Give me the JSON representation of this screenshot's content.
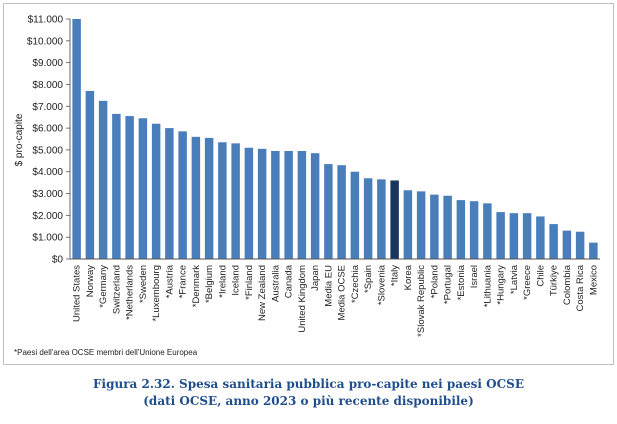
{
  "chart_data": {
    "type": "bar",
    "title": "",
    "xlabel": "",
    "ylabel": "$ pro-capite",
    "ylim": [
      0,
      11000
    ],
    "yticks": [
      0,
      1000,
      2000,
      3000,
      4000,
      5000,
      6000,
      7000,
      8000,
      9000,
      10000,
      11000
    ],
    "ytick_labels": [
      "$0",
      "$1.000",
      "$2.000",
      "$3.000",
      "$4.000",
      "$5.000",
      "$6.000",
      "$7.000",
      "$8.000",
      "$9.000",
      "$10.000",
      "$11.000"
    ],
    "grid": false,
    "legend": "none",
    "bar_color": "#4a7ebb",
    "highlight_color": "#17375e",
    "highlight_category": "*Italy",
    "categories": [
      "United States",
      "Norway",
      "*Germany",
      "Switzerland",
      "*Netherlands",
      "*Sweden",
      "*Luxembourg",
      "*Austria",
      "*France",
      "*Denmark",
      "*Belgium",
      "*Ireland",
      "Iceland",
      "*Finland",
      "New Zealand",
      "Australia",
      "Canada",
      "United Kingdom",
      "Japan",
      "Media EU",
      "Media OCSE",
      "*Czechia",
      "*Spain",
      "*Slovenia",
      "*Italy",
      "Korea",
      "*Slovak Republic",
      "*Poland",
      "*Portugal",
      "*Estonia",
      "Israel",
      "*Lithuania",
      "*Hungary",
      "*Latvia",
      "*Greece",
      "Chile",
      "Türkiye",
      "Colombia",
      "Costa Rica",
      "Mexico"
    ],
    "values": [
      11000,
      7700,
      7250,
      6650,
      6550,
      6450,
      6200,
      6000,
      5850,
      5600,
      5550,
      5350,
      5300,
      5100,
      5050,
      4950,
      4950,
      4950,
      4850,
      4350,
      4300,
      4000,
      3700,
      3650,
      3600,
      3150,
      3100,
      2950,
      2900,
      2700,
      2650,
      2550,
      2150,
      2100,
      2100,
      1950,
      1600,
      1300,
      1250,
      750
    ]
  },
  "footnote": "*Paesi dell'area OCSE membri dell'Unione Europea",
  "caption": {
    "line1": "Figura 2.32. Spesa sanitaria pubblica pro-capite nei paesi OCSE",
    "line2": "(dati OCSE, anno 2023 o più recente disponibile)"
  }
}
